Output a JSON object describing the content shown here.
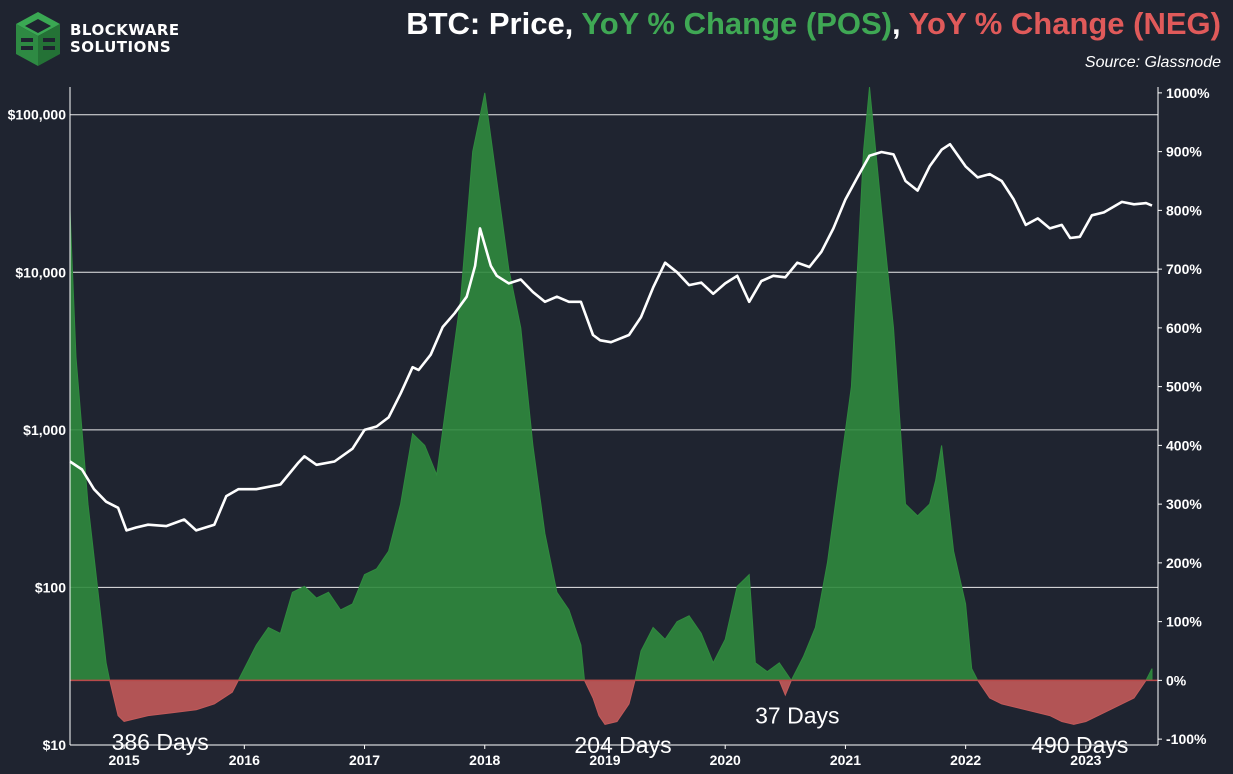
{
  "brand": {
    "line1": "BLOCKWARE",
    "line2": "SOLUTIONS",
    "logo_icon": "blockware-cube-logo"
  },
  "title": {
    "part1": "BTC: Price, ",
    "part2": "YoY % Change (POS)",
    "part3": ", ",
    "part4": "YoY % Change (NEG)"
  },
  "source": "Source: Glassnode",
  "colors": {
    "background": "#1f2430",
    "positive": "#2f8a3e",
    "negative": "#c25a5a",
    "price": "#ffffff",
    "grid": "#ffffff"
  },
  "chart_data": {
    "type": "line",
    "title": "BTC: Price, YoY % Change (POS), YoY % Change (NEG)",
    "x_ticks": [
      "2015",
      "2016",
      "2017",
      "2018",
      "2019",
      "2020",
      "2021",
      "2022",
      "2023"
    ],
    "x_range": [
      2014.55,
      2023.6
    ],
    "left_axis": {
      "scale": "log",
      "range": [
        10,
        150000
      ],
      "ticks": [
        {
          "value": 10,
          "label": "$10"
        },
        {
          "value": 100,
          "label": "$100"
        },
        {
          "value": 1000,
          "label": "$1,000"
        },
        {
          "value": 10000,
          "label": "$10,000"
        },
        {
          "value": 100000,
          "label": "$100,000"
        }
      ]
    },
    "right_axis": {
      "scale": "linear",
      "range": [
        -110,
        1010
      ],
      "ticks": [
        {
          "value": 1000,
          "label": "1000%"
        },
        {
          "value": 900,
          "label": "900%"
        },
        {
          "value": 800,
          "label": "800%"
        },
        {
          "value": 700,
          "label": "700%"
        },
        {
          "value": 600,
          "label": "600%"
        },
        {
          "value": 500,
          "label": "500%"
        },
        {
          "value": 400,
          "label": "400%"
        },
        {
          "value": 300,
          "label": "300%"
        },
        {
          "value": 200,
          "label": "200%"
        },
        {
          "value": 100,
          "label": "100%"
        },
        {
          "value": 0,
          "label": "0%"
        },
        {
          "value": -100,
          "label": "-100%"
        }
      ]
    },
    "series": [
      {
        "name": "BTC Price",
        "axis": "left",
        "x": [
          2014.55,
          2014.65,
          2014.75,
          2014.85,
          2014.95,
          2015.02,
          2015.1,
          2015.2,
          2015.35,
          2015.5,
          2015.6,
          2015.75,
          2015.85,
          2015.95,
          2016.1,
          2016.3,
          2016.45,
          2016.5,
          2016.6,
          2016.75,
          2016.9,
          2017.0,
          2017.1,
          2017.2,
          2017.3,
          2017.4,
          2017.45,
          2017.55,
          2017.65,
          2017.75,
          2017.85,
          2017.92,
          2017.96,
          2018.05,
          2018.1,
          2018.2,
          2018.3,
          2018.4,
          2018.5,
          2018.6,
          2018.7,
          2018.8,
          2018.9,
          2018.96,
          2019.05,
          2019.2,
          2019.3,
          2019.4,
          2019.5,
          2019.6,
          2019.7,
          2019.8,
          2019.9,
          2020.0,
          2020.1,
          2020.2,
          2020.3,
          2020.4,
          2020.5,
          2020.6,
          2020.7,
          2020.8,
          2020.9,
          2021.0,
          2021.1,
          2021.2,
          2021.3,
          2021.4,
          2021.5,
          2021.6,
          2021.7,
          2021.8,
          2021.87,
          2022.0,
          2022.1,
          2022.2,
          2022.3,
          2022.4,
          2022.5,
          2022.6,
          2022.7,
          2022.8,
          2022.87,
          2022.95,
          2023.05,
          2023.15,
          2023.3,
          2023.4,
          2023.5,
          2023.55
        ],
        "values": [
          630,
          560,
          420,
          350,
          320,
          230,
          240,
          250,
          245,
          270,
          230,
          250,
          380,
          420,
          420,
          450,
          620,
          680,
          600,
          630,
          760,
          1000,
          1050,
          1200,
          1700,
          2500,
          2400,
          3000,
          4500,
          5500,
          7000,
          11000,
          19000,
          11000,
          9500,
          8500,
          9000,
          7500,
          6500,
          7000,
          6500,
          6500,
          4000,
          3700,
          3600,
          4000,
          5200,
          8000,
          11500,
          10000,
          8300,
          8600,
          7300,
          8500,
          9500,
          6500,
          8800,
          9500,
          9300,
          11500,
          10800,
          13500,
          19000,
          29000,
          40000,
          55000,
          58000,
          56000,
          38000,
          33000,
          47000,
          60000,
          65000,
          47000,
          40000,
          42000,
          38000,
          29000,
          20000,
          22000,
          19000,
          20000,
          16500,
          16800,
          23000,
          24000,
          28000,
          27000,
          27500,
          26500
        ]
      },
      {
        "name": "YoY % Change (POS)",
        "axis": "right",
        "x": [
          2014.55,
          2014.6,
          2014.7,
          2014.8,
          2014.85,
          2014.88,
          2015.95,
          2016.0,
          2016.1,
          2016.2,
          2016.3,
          2016.4,
          2016.5,
          2016.6,
          2016.7,
          2016.8,
          2016.9,
          2017.0,
          2017.1,
          2017.2,
          2017.3,
          2017.4,
          2017.5,
          2017.6,
          2017.7,
          2017.8,
          2017.9,
          2017.95,
          2018.0,
          2018.1,
          2018.2,
          2018.3,
          2018.4,
          2018.5,
          2018.6,
          2018.7,
          2018.8,
          2018.83,
          2019.25,
          2019.3,
          2019.4,
          2019.5,
          2019.6,
          2019.7,
          2019.8,
          2019.9,
          2020.0,
          2020.1,
          2020.2,
          2020.25,
          2020.35,
          2020.45,
          2020.55,
          2020.65,
          2020.75,
          2020.85,
          2020.95,
          2021.05,
          2021.15,
          2021.2,
          2021.3,
          2021.4,
          2021.5,
          2021.6,
          2021.7,
          2021.75,
          2021.8,
          2021.9,
          2022.0,
          2022.05,
          2022.1,
          2023.5,
          2023.55
        ],
        "values": [
          800,
          550,
          300,
          120,
          30,
          0,
          0,
          20,
          60,
          90,
          80,
          150,
          160,
          140,
          150,
          120,
          130,
          180,
          190,
          220,
          300,
          420,
          400,
          350,
          500,
          650,
          900,
          950,
          1000,
          850,
          700,
          600,
          400,
          250,
          150,
          120,
          60,
          0,
          0,
          50,
          90,
          70,
          100,
          110,
          80,
          30,
          70,
          160,
          180,
          30,
          15,
          30,
          0,
          40,
          90,
          200,
          350,
          500,
          900,
          1010,
          800,
          600,
          300,
          280,
          300,
          340,
          400,
          220,
          130,
          20,
          0,
          0,
          20
        ]
      },
      {
        "name": "YoY % Change (NEG)",
        "axis": "right",
        "x": [
          2014.88,
          2014.95,
          2015.0,
          2015.2,
          2015.4,
          2015.6,
          2015.75,
          2015.9,
          2015.95,
          2018.83,
          2018.9,
          2018.95,
          2019.0,
          2019.1,
          2019.2,
          2019.25,
          2020.45,
          2020.5,
          2020.55,
          2022.1,
          2022.2,
          2022.3,
          2022.5,
          2022.7,
          2022.8,
          2022.9,
          2023.0,
          2023.2,
          2023.4,
          2023.5
        ],
        "values": [
          0,
          -60,
          -70,
          -60,
          -55,
          -50,
          -40,
          -20,
          0,
          0,
          -30,
          -60,
          -75,
          -70,
          -40,
          0,
          0,
          -25,
          0,
          0,
          -30,
          -40,
          -50,
          -60,
          -70,
          -75,
          -70,
          -50,
          -30,
          0
        ]
      }
    ],
    "annotations": [
      {
        "text": "386 Days",
        "x": 2015.3,
        "y": -105
      },
      {
        "text": "204 Days",
        "x": 2019.15,
        "y": -110
      },
      {
        "text": "37 Days",
        "x": 2020.6,
        "y": -60
      },
      {
        "text": "490 Days",
        "x": 2022.95,
        "y": -110
      }
    ]
  }
}
